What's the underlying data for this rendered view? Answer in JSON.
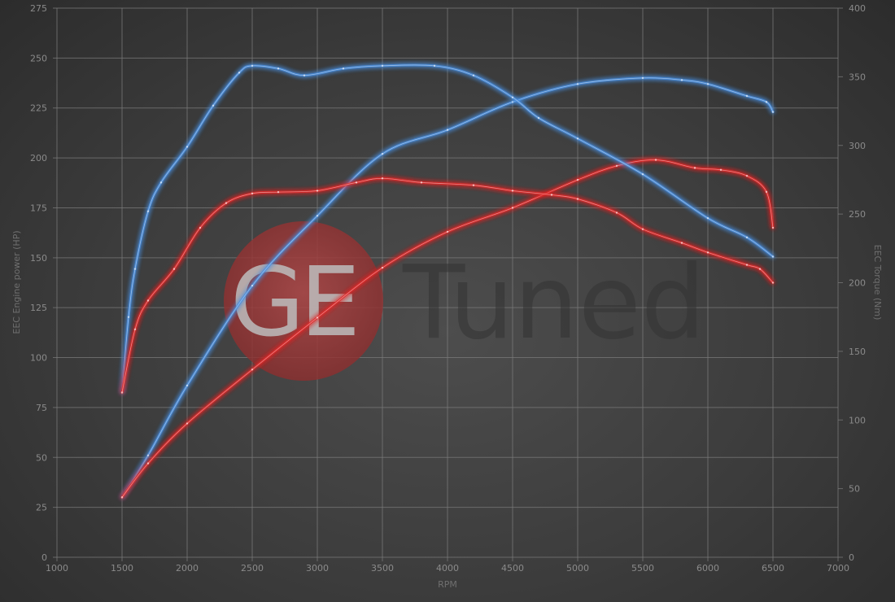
{
  "chart_data": {
    "type": "line",
    "title": "",
    "xlabel": "RPM",
    "ylabel": "EEC Engine power (HP)",
    "y2label": "EEC Torque (Nm)",
    "xlim": [
      1000,
      7000
    ],
    "ylim": [
      0,
      275
    ],
    "y2lim": [
      0,
      400
    ],
    "xticks": [
      1000,
      1500,
      2000,
      2500,
      3000,
      3500,
      4000,
      4500,
      5000,
      5500,
      6000,
      6500,
      7000
    ],
    "yticks": [
      0,
      25,
      50,
      75,
      100,
      125,
      150,
      175,
      200,
      225,
      250,
      275
    ],
    "y2ticks": [
      0,
      50,
      100,
      150,
      200,
      250,
      300,
      350,
      400
    ],
    "grid": true,
    "legend": "none",
    "watermark": "GE Tuned",
    "series": [
      {
        "axis": "left",
        "color": "#4a8fe0",
        "x": [
          1500,
          1700,
          2000,
          2500,
          3000,
          3500,
          4000,
          4500,
          5000,
          5500,
          5800,
          6000,
          6300,
          6450,
          6500
        ],
        "values": [
          30,
          51,
          86,
          136,
          171,
          202,
          214,
          228,
          237,
          240,
          239,
          237,
          231,
          228,
          223
        ]
      },
      {
        "axis": "left",
        "color": "#e02828",
        "x": [
          1500,
          1700,
          2000,
          2500,
          3000,
          3500,
          4000,
          4500,
          5000,
          5300,
          5600,
          5900,
          6100,
          6300,
          6450,
          6500
        ],
        "values": [
          30,
          47,
          67,
          94,
          120,
          145,
          163,
          175,
          189,
          196,
          199,
          195,
          194,
          191,
          183,
          165
        ]
      },
      {
        "axis": "right",
        "color": "#4a8fe0",
        "x": [
          1500,
          1550,
          1600,
          1700,
          1800,
          2000,
          2200,
          2400,
          2500,
          2700,
          2900,
          3200,
          3500,
          3900,
          4200,
          4500,
          4700,
          5000,
          5500,
          6000,
          6300,
          6500
        ],
        "values": [
          120,
          175,
          210,
          252,
          273,
          299,
          329,
          353,
          358,
          356,
          351,
          356,
          358,
          358,
          351,
          335,
          320,
          305,
          279,
          247,
          233,
          219
        ]
      },
      {
        "axis": "right",
        "color": "#e02828",
        "x": [
          1500,
          1600,
          1700,
          1900,
          2100,
          2300,
          2500,
          2700,
          3000,
          3300,
          3500,
          3800,
          4200,
          4500,
          4800,
          5000,
          5300,
          5500,
          5800,
          6000,
          6300,
          6400,
          6500
        ],
        "values": [
          120,
          166,
          187,
          210,
          240,
          258,
          265,
          266,
          267,
          273,
          276,
          273,
          271,
          267,
          264,
          261,
          251,
          239,
          229,
          222,
          213,
          210,
          200
        ]
      }
    ]
  }
}
